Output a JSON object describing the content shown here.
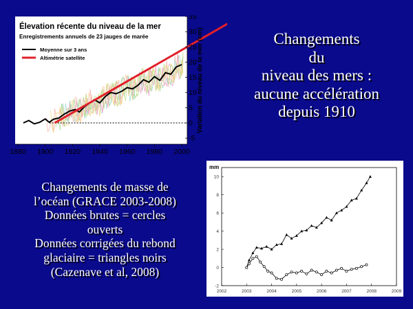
{
  "slide": {
    "headline_lines": [
      "Changements",
      "du",
      "niveau des mers :",
      "aucune accélération",
      "depuis 1910"
    ],
    "note_lines": [
      "Changements de masse de",
      "l’océan (GRACE 2003-2008)",
      "Données brutes = cercles",
      "ouverts",
      "Données corrigées du rebond",
      "glaciaire = triangles noirs",
      "(Cazenave et al, 2008)"
    ],
    "colors": {
      "background": "#0a0a8c",
      "text": "#ffffff",
      "red_line": "#e0202a",
      "black_line": "#000000"
    }
  },
  "chart_data": [
    {
      "type": "line",
      "title": "Élevation récente du niveau de la mer",
      "subtitle": "Enregistrements annuels de 23 jauges de marée",
      "ylabel": "Variation du niveau de la mer (cm)",
      "xlabel": "",
      "xlim": [
        1878,
        2004
      ],
      "ylim": [
        -7,
        35
      ],
      "x_ticks": [
        1880,
        1900,
        1920,
        1940,
        1960,
        1980,
        2000
      ],
      "y_ticks": [
        -5,
        0,
        5,
        10,
        15,
        20,
        25,
        30,
        35
      ],
      "grid": false,
      "legend_position": "top-left",
      "reference_line": 0,
      "series": [
        {
          "name": "Moyenne sur 3 ans",
          "color": "#000000",
          "points": [
            [
              1884,
              0
            ],
            [
              1888,
              0.8
            ],
            [
              1892,
              -0.3
            ],
            [
              1896,
              0.2
            ],
            [
              1900,
              1.3
            ],
            [
              1903,
              0.2
            ],
            [
              1906,
              1.2
            ],
            [
              1910,
              1.6
            ],
            [
              1914,
              2.9
            ],
            [
              1918,
              3.9
            ],
            [
              1922,
              4.4
            ],
            [
              1925,
              3.6
            ],
            [
              1928,
              5.0
            ],
            [
              1932,
              6.4
            ],
            [
              1936,
              7.6
            ],
            [
              1940,
              6.6
            ],
            [
              1944,
              8.7
            ],
            [
              1948,
              10.0
            ],
            [
              1952,
              9.6
            ],
            [
              1956,
              10.4
            ],
            [
              1960,
              11.6
            ],
            [
              1964,
              11.2
            ],
            [
              1968,
              12.4
            ],
            [
              1972,
              14.2
            ],
            [
              1976,
              13.4
            ],
            [
              1980,
              15.2
            ],
            [
              1984,
              14.0
            ],
            [
              1988,
              16.5
            ],
            [
              1992,
              16.0
            ],
            [
              1996,
              18.4
            ],
            [
              2000,
              19.2
            ]
          ]
        },
        {
          "name": "Altimétrie satellite",
          "color": "#e0202a",
          "points": [
            [
              1907,
              0
            ],
            [
              2035,
              33
            ]
          ]
        }
      ]
    },
    {
      "type": "line",
      "title": "",
      "ylabel": "mm",
      "xlabel": "",
      "xlim": [
        2002,
        2009
      ],
      "ylim": [
        -2,
        11
      ],
      "x_ticks": [
        2002,
        2003,
        2004,
        2005,
        2006,
        2007,
        2008,
        2009
      ],
      "y_ticks": [
        -2,
        0,
        2,
        4,
        6,
        8,
        10
      ],
      "grid": false,
      "series": [
        {
          "name": "Données corrigées (triangles noirs)",
          "marker": "triangle",
          "points": [
            [
              2003.0,
              0.0
            ],
            [
              2003.1,
              0.8
            ],
            [
              2003.25,
              1.6
            ],
            [
              2003.4,
              2.2
            ],
            [
              2003.6,
              2.1
            ],
            [
              2003.8,
              2.3
            ],
            [
              2004.0,
              2.0
            ],
            [
              2004.2,
              2.5
            ],
            [
              2004.4,
              2.6
            ],
            [
              2004.6,
              3.6
            ],
            [
              2004.8,
              3.2
            ],
            [
              2005.0,
              3.5
            ],
            [
              2005.2,
              4.0
            ],
            [
              2005.4,
              4.1
            ],
            [
              2005.6,
              4.6
            ],
            [
              2005.8,
              4.4
            ],
            [
              2006.0,
              4.9
            ],
            [
              2006.2,
              5.5
            ],
            [
              2006.4,
              5.2
            ],
            [
              2006.6,
              6.0
            ],
            [
              2006.8,
              6.3
            ],
            [
              2007.0,
              6.7
            ],
            [
              2007.2,
              7.4
            ],
            [
              2007.4,
              7.6
            ],
            [
              2007.6,
              8.5
            ],
            [
              2007.8,
              9.3
            ],
            [
              2007.95,
              10.0
            ]
          ]
        },
        {
          "name": "Données brutes (cercles ouverts)",
          "marker": "circle",
          "points": [
            [
              2003.0,
              0.0
            ],
            [
              2003.1,
              0.4
            ],
            [
              2003.25,
              1.0
            ],
            [
              2003.4,
              1.2
            ],
            [
              2003.55,
              0.6
            ],
            [
              2003.7,
              0.1
            ],
            [
              2003.85,
              -0.4
            ],
            [
              2004.0,
              -0.6
            ],
            [
              2004.2,
              -1.2
            ],
            [
              2004.4,
              -1.3
            ],
            [
              2004.6,
              -0.8
            ],
            [
              2004.8,
              -0.5
            ],
            [
              2005.0,
              -0.6
            ],
            [
              2005.2,
              -0.4
            ],
            [
              2005.4,
              -0.7
            ],
            [
              2005.6,
              -0.3
            ],
            [
              2005.8,
              -0.5
            ],
            [
              2006.0,
              -0.8
            ],
            [
              2006.2,
              -0.4
            ],
            [
              2006.4,
              -0.6
            ],
            [
              2006.6,
              -0.3
            ],
            [
              2006.8,
              -0.1
            ],
            [
              2007.0,
              -0.4
            ],
            [
              2007.2,
              -0.2
            ],
            [
              2007.4,
              -0.1
            ],
            [
              2007.6,
              0.1
            ],
            [
              2007.8,
              0.3
            ]
          ]
        }
      ]
    }
  ]
}
